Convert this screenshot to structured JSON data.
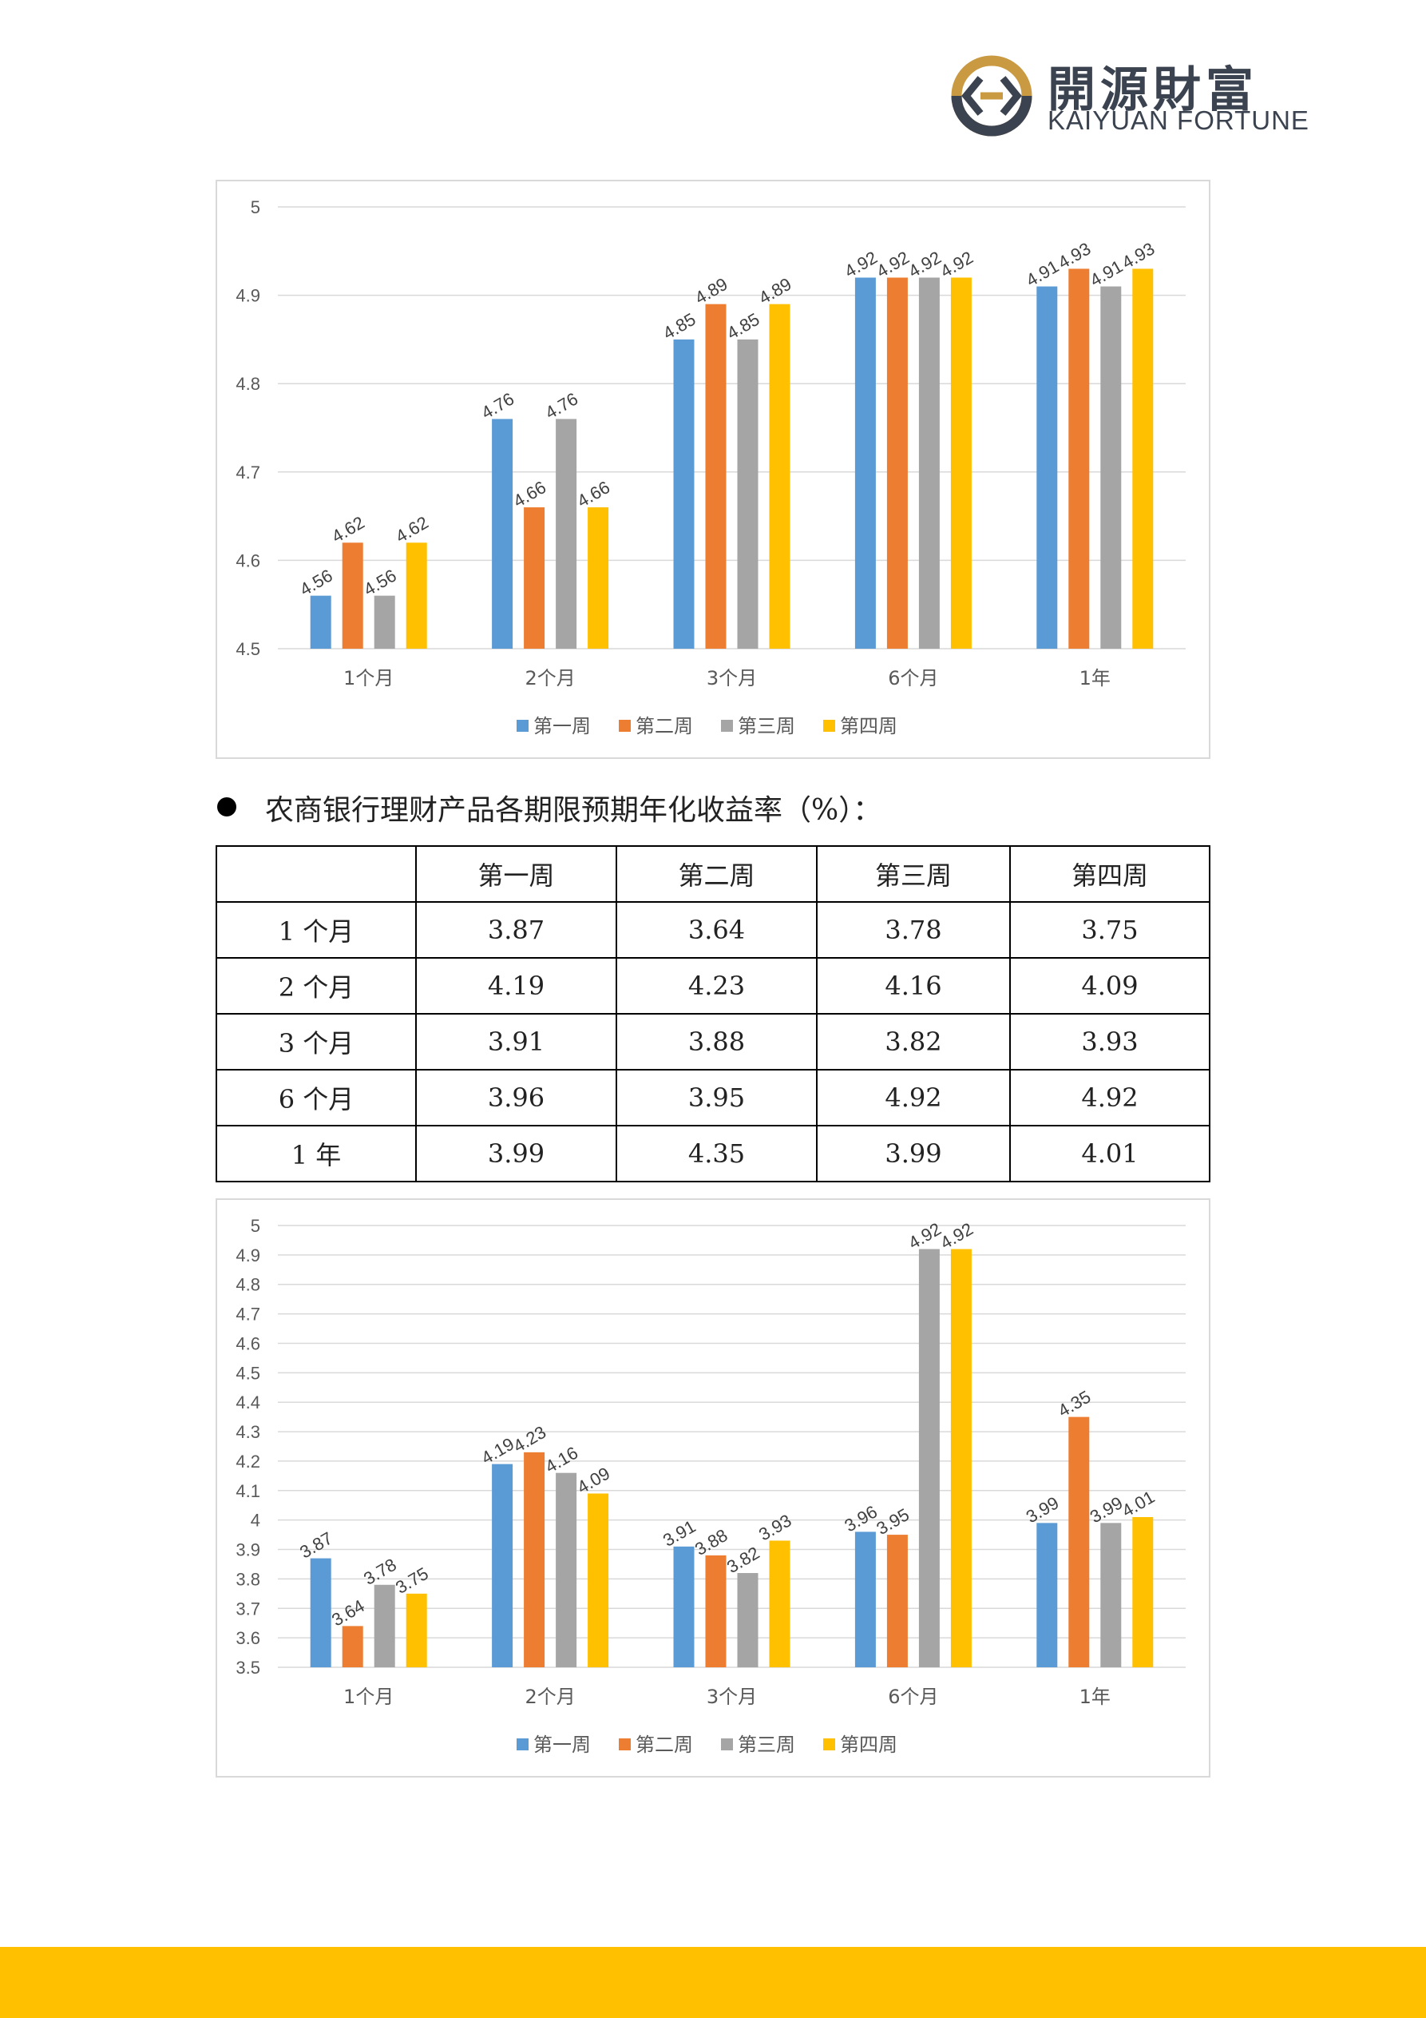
{
  "brand": {
    "name_cn": "開源財富",
    "name_en": "KAIYUAN FORTUNE",
    "colors": {
      "gold": "#c99a42",
      "slate": "#3b4350",
      "footer": "#ffc000"
    }
  },
  "series_colors": [
    "#5b9bd5",
    "#ed7d31",
    "#a5a5a5",
    "#ffc000"
  ],
  "chart_data": [
    {
      "type": "bar",
      "categories": [
        "1个月",
        "2个月",
        "3个月",
        "6个月",
        "1年"
      ],
      "series": [
        {
          "name": "第一周",
          "values": [
            4.56,
            4.76,
            4.85,
            4.92,
            4.91
          ]
        },
        {
          "name": "第二周",
          "values": [
            4.62,
            4.66,
            4.89,
            4.92,
            4.93
          ]
        },
        {
          "name": "第三周",
          "values": [
            4.56,
            4.76,
            4.85,
            4.92,
            4.91
          ]
        },
        {
          "name": "第四周",
          "values": [
            4.62,
            4.66,
            4.89,
            4.92,
            4.93
          ]
        }
      ],
      "ylim": [
        4.5,
        5
      ],
      "yticks": [
        "4.5",
        "4.6",
        "4.7",
        "4.8",
        "4.9",
        "5"
      ],
      "grid": true,
      "legend": "bottom",
      "data_labels": true
    },
    {
      "type": "bar",
      "categories": [
        "1个月",
        "2个月",
        "3个月",
        "6个月",
        "1年"
      ],
      "series": [
        {
          "name": "第一周",
          "values": [
            3.87,
            4.19,
            3.91,
            3.96,
            3.99
          ]
        },
        {
          "name": "第二周",
          "values": [
            3.64,
            4.23,
            3.88,
            3.95,
            4.35
          ]
        },
        {
          "name": "第三周",
          "values": [
            3.78,
            4.16,
            3.82,
            4.92,
            3.99
          ]
        },
        {
          "name": "第四周",
          "values": [
            3.75,
            4.09,
            3.93,
            4.92,
            4.01
          ]
        }
      ],
      "ylim": [
        3.5,
        5
      ],
      "yticks": [
        "3.5",
        "3.6",
        "3.7",
        "3.8",
        "3.9",
        "4",
        "4.1",
        "4.2",
        "4.3",
        "4.4",
        "4.5",
        "4.6",
        "4.7",
        "4.8",
        "4.9",
        "5"
      ],
      "grid": true,
      "legend": "bottom",
      "data_labels": true
    }
  ],
  "section": {
    "title": "农商银行理财产品各期限预期年化收益率（%）："
  },
  "table": {
    "header": [
      "",
      "第一周",
      "第二周",
      "第三周",
      "第四周"
    ],
    "rows": [
      [
        "1 个月",
        "3.87",
        "3.64",
        "3.78",
        "3.75"
      ],
      [
        "2 个月",
        "4.19",
        "4.23",
        "4.16",
        "4.09"
      ],
      [
        "3 个月",
        "3.91",
        "3.88",
        "3.82",
        "3.93"
      ],
      [
        "6 个月",
        "3.96",
        "3.95",
        "4.92",
        "4.92"
      ],
      [
        "1 年",
        "3.99",
        "4.35",
        "3.99",
        "4.01"
      ]
    ]
  }
}
